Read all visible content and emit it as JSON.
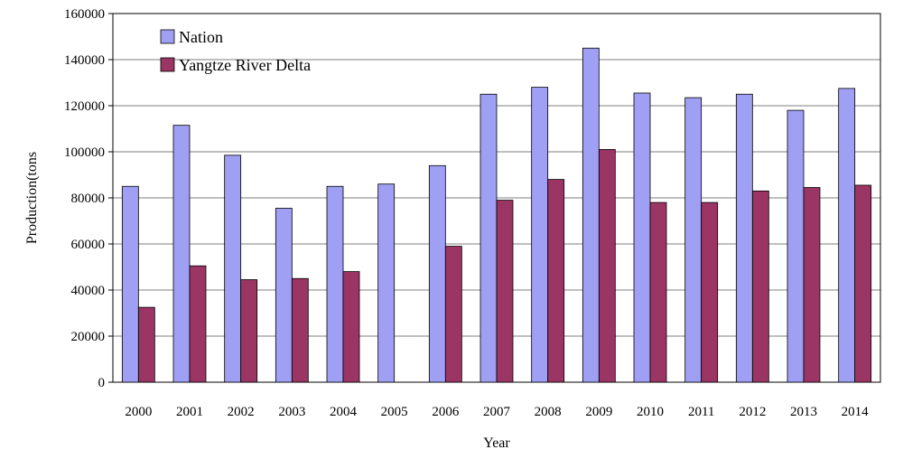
{
  "chart_data": {
    "type": "bar",
    "xlabel": "Year",
    "ylabel": "Production(tons",
    "ylim": [
      0,
      160000
    ],
    "yticks": [
      0,
      20000,
      40000,
      60000,
      80000,
      100000,
      120000,
      140000,
      160000
    ],
    "grid": true,
    "legend_position": "top-left",
    "categories": [
      "2000",
      "2001",
      "2002",
      "2003",
      "2004",
      "2005",
      "2006",
      "2007",
      "2008",
      "2009",
      "2010",
      "2011",
      "2012",
      "2013",
      "2014"
    ],
    "series": [
      {
        "name": "Nation",
        "color": "#9f9ff4",
        "values": [
          85000,
          111500,
          98500,
          75500,
          85000,
          86000,
          94000,
          125000,
          128000,
          145000,
          125500,
          123500,
          125000,
          118000,
          127500
        ]
      },
      {
        "name": "Yangtze River Delta",
        "color": "#9b3563",
        "values": [
          32500,
          50500,
          44500,
          45000,
          48000,
          0,
          59000,
          79000,
          88000,
          101000,
          78000,
          78000,
          83000,
          84500,
          85500
        ]
      }
    ]
  }
}
